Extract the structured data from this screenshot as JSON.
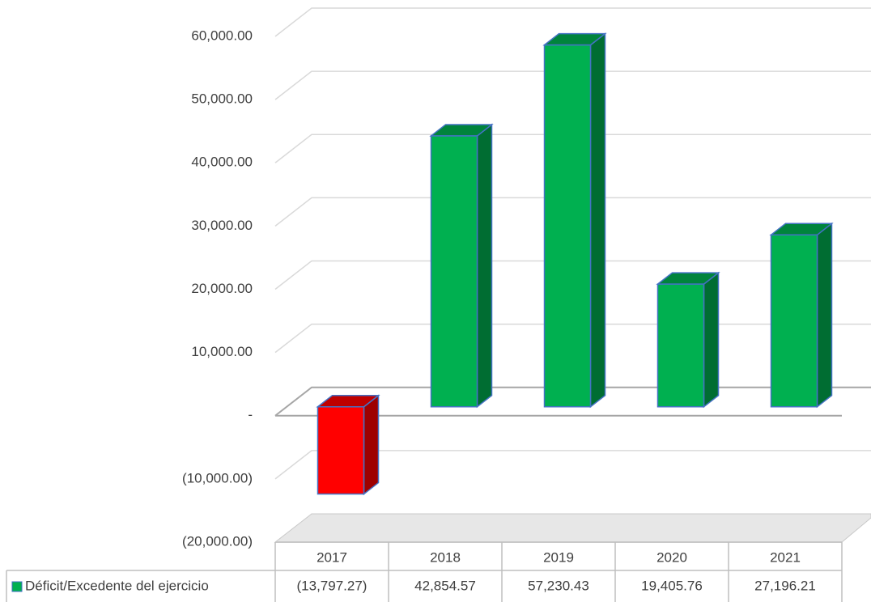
{
  "chart_data": {
    "type": "bar3d",
    "categories": [
      "2017",
      "2018",
      "2019",
      "2020",
      "2021"
    ],
    "series": [
      {
        "name": "Déficit/Excedente del ejercicio",
        "color": "#00b050",
        "negative_color": "#ff0000",
        "values": [
          -13797.27,
          42854.57,
          57230.43,
          19405.76,
          27196.21
        ],
        "value_labels": [
          "(13,797.27)",
          "42,854.57",
          "57,230.43",
          "19,405.76",
          "27,196.21"
        ]
      }
    ],
    "ylim": [
      -20000,
      60000
    ],
    "yticks": [
      {
        "value": -20000,
        "label": "(20,000.00)"
      },
      {
        "value": -10000,
        "label": "(10,000.00)"
      },
      {
        "value": 0,
        "label": "-"
      },
      {
        "value": 10000,
        "label": "10,000.00"
      },
      {
        "value": 20000,
        "label": "20,000.00"
      },
      {
        "value": 30000,
        "label": "30,000.00"
      },
      {
        "value": 40000,
        "label": "40,000.00"
      },
      {
        "value": 50000,
        "label": "50,000.00"
      },
      {
        "value": 60000,
        "label": "60,000.00"
      }
    ],
    "grid": true
  }
}
